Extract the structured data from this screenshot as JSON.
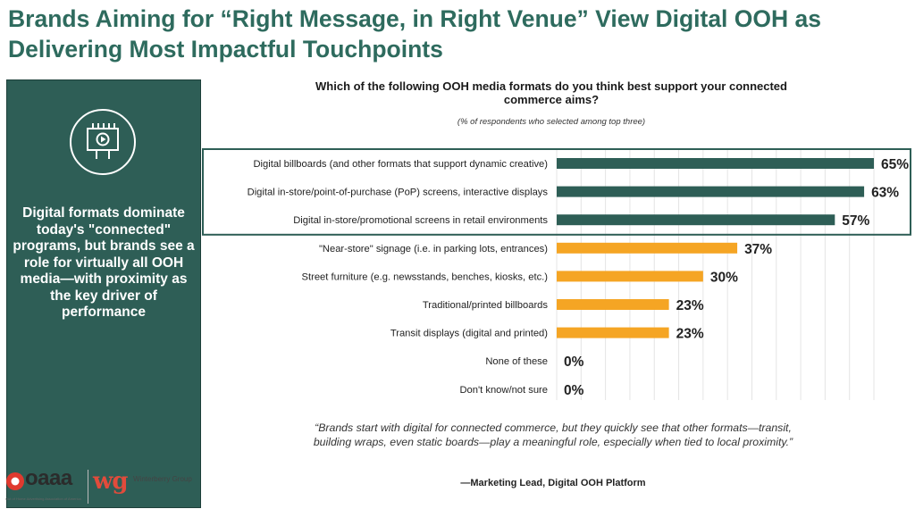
{
  "title": "Brands Aiming for “Right Message, in Right Venue” View Digital OOH as Delivering Most Impactful Touchpoints",
  "sidebar": {
    "icon": "billboard-play-icon",
    "text": "Digital formats dominate today's \"connected\" programs, but brands see a role for virtually all OOH media—with proximity as the key driver of performance"
  },
  "colors": {
    "digital": "#2e5e56",
    "other": "#f5a524",
    "title": "#2e6b5e",
    "sidebar": "#2e5e56"
  },
  "chart_data": {
    "type": "bar",
    "orientation": "horizontal",
    "title": "Which of the following OOH media formats do you think best support your connected commerce aims?",
    "subtitle": "(% of respondents who selected among top three)",
    "categories": [
      "Digital billboards (and other formats that support dynamic creative)",
      "Digital in-store/point-of-purchase (PoP) screens, interactive displays",
      "Digital in-store/promotional screens in retail environments",
      "\"Near-store\" signage (i.e. in parking lots, entrances)",
      "Street furniture (e.g. newsstands, benches, kiosks, etc.)",
      "Traditional/printed billboards",
      "Transit displays (digital and printed)",
      "None of these",
      "Don't know/not sure"
    ],
    "values": [
      65,
      63,
      57,
      37,
      30,
      23,
      23,
      0,
      0
    ],
    "labels": [
      "65%",
      "63%",
      "57%",
      "37%",
      "30%",
      "23%",
      "23%",
      "0%",
      "0%"
    ],
    "highlighted_top": 3,
    "xlim": [
      0,
      65
    ],
    "grid": true,
    "legend": "none"
  },
  "quote": "“Brands start with digital for connected commerce, but they quickly see that other formats—transit, building wraps, even static boards—play a meaningful role, especially when tied to local proximity.”",
  "attribution": "—Marketing Lead, Digital OOH Platform",
  "logos": {
    "oaaa": "oaaa",
    "oaaa_tagline": "Out of Home Advertising Association of America",
    "wg": "wg",
    "wg_name": "Winterberry Group"
  }
}
